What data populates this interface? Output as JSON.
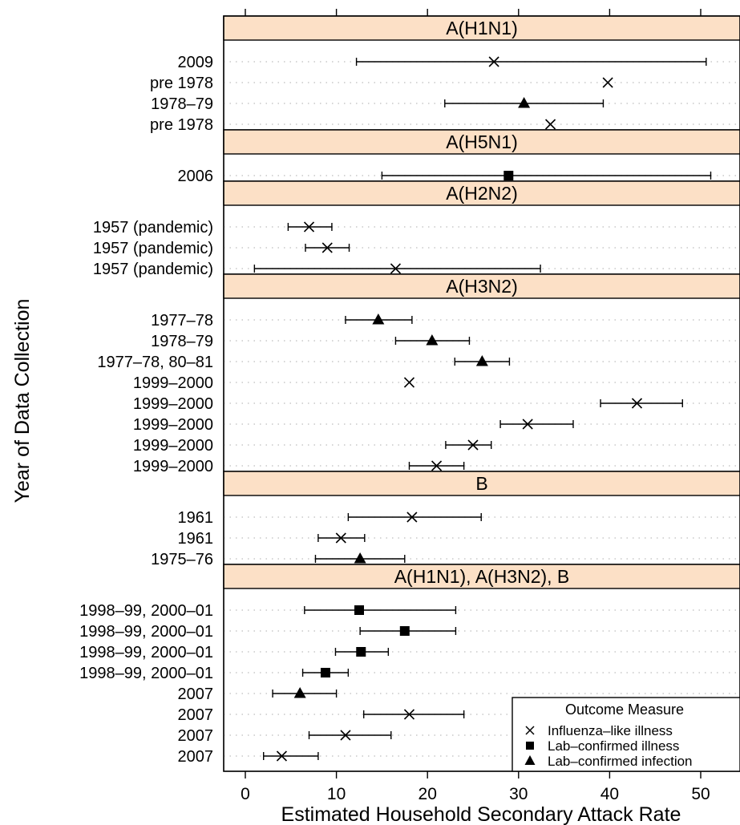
{
  "chart_data": {
    "type": "forest",
    "xlabel": "Estimated Household Secondary Attack Rate",
    "ylabel": "Year of Data Collection",
    "xlim": [
      -2,
      54
    ],
    "xticks": [
      0,
      10,
      20,
      30,
      40,
      50
    ],
    "grid": "dotted horizontal",
    "legend": {
      "title": "Outcome Measure",
      "placement": "bottom-right",
      "entries": [
        {
          "key": "ili",
          "label": "Influenza–like illness",
          "marker": "cross"
        },
        {
          "key": "lci",
          "label": "Lab–confirmed illness",
          "marker": "square"
        },
        {
          "key": "lcf",
          "label": "Lab–confirmed infection",
          "marker": "triangle"
        }
      ]
    },
    "panels": [
      {
        "title": "A(H1N1)",
        "rows": [
          {
            "label": "2009",
            "est": 27.3,
            "lo": 12.2,
            "hi": 50.6,
            "type": "ili"
          },
          {
            "label": "pre 1978",
            "est": 39.8,
            "lo": null,
            "hi": null,
            "type": "ili"
          },
          {
            "label": "1978–79",
            "est": 30.6,
            "lo": 21.9,
            "hi": 39.3,
            "type": "lcf"
          },
          {
            "label": "pre 1978",
            "est": 33.5,
            "lo": null,
            "hi": null,
            "type": "ili"
          }
        ]
      },
      {
        "title": "A(H5N1)",
        "rows": [
          {
            "label": "2006",
            "est": 28.9,
            "lo": 15.0,
            "hi": 51.1,
            "type": "lci"
          }
        ]
      },
      {
        "title": "A(H2N2)",
        "rows": [
          {
            "label": "1957 (pandemic)",
            "est": 7.0,
            "lo": 4.7,
            "hi": 9.5,
            "type": "ili"
          },
          {
            "label": "1957 (pandemic)",
            "est": 9.0,
            "lo": 6.6,
            "hi": 11.4,
            "type": "ili"
          },
          {
            "label": "1957 (pandemic)",
            "est": 16.5,
            "lo": 1.0,
            "hi": 32.4,
            "type": "ili"
          }
        ]
      },
      {
        "title": "A(H3N2)",
        "rows": [
          {
            "label": "1977–78",
            "est": 14.6,
            "lo": 11.0,
            "hi": 18.3,
            "type": "lcf"
          },
          {
            "label": "1978–79",
            "est": 20.5,
            "lo": 16.5,
            "hi": 24.6,
            "type": "lcf"
          },
          {
            "label": "1977–78, 80–81",
            "est": 26.0,
            "lo": 23.0,
            "hi": 29.0,
            "type": "lcf"
          },
          {
            "label": "1999–2000",
            "est": 18.0,
            "lo": null,
            "hi": null,
            "type": "ili"
          },
          {
            "label": "1999–2000",
            "est": 43.0,
            "lo": 39.0,
            "hi": 48.0,
            "type": "ili"
          },
          {
            "label": "1999–2000",
            "est": 31.0,
            "lo": 28.0,
            "hi": 36.0,
            "type": "ili"
          },
          {
            "label": "1999–2000",
            "est": 25.0,
            "lo": 22.0,
            "hi": 27.0,
            "type": "ili"
          },
          {
            "label": "1999–2000",
            "est": 21.0,
            "lo": 18.0,
            "hi": 24.0,
            "type": "ili"
          }
        ]
      },
      {
        "title": "B",
        "rows": [
          {
            "label": "1961",
            "est": 18.3,
            "lo": 11.3,
            "hi": 25.9,
            "type": "ili"
          },
          {
            "label": "1961",
            "est": 10.5,
            "lo": 8.0,
            "hi": 13.1,
            "type": "ili"
          },
          {
            "label": "1975–76",
            "est": 12.6,
            "lo": 7.7,
            "hi": 17.5,
            "type": "lcf"
          }
        ]
      },
      {
        "title": "A(H1N1), A(H3N2), B",
        "rows": [
          {
            "label": "1998–99, 2000–01",
            "est": 12.5,
            "lo": 6.5,
            "hi": 23.1,
            "type": "lci"
          },
          {
            "label": "1998–99, 2000–01",
            "est": 17.5,
            "lo": 12.6,
            "hi": 23.1,
            "type": "lci"
          },
          {
            "label": "1998–99, 2000–01",
            "est": 12.7,
            "lo": 9.9,
            "hi": 15.7,
            "type": "lci"
          },
          {
            "label": "1998–99, 2000–01",
            "est": 8.8,
            "lo": 6.3,
            "hi": 11.3,
            "type": "lci"
          },
          {
            "label": "2007",
            "est": 6.0,
            "lo": 3.0,
            "hi": 10.0,
            "type": "lcf"
          },
          {
            "label": "2007",
            "est": 18.0,
            "lo": 13.0,
            "hi": 24.0,
            "type": "ili"
          },
          {
            "label": "2007",
            "est": 11.0,
            "lo": 7.0,
            "hi": 16.0,
            "type": "ili"
          },
          {
            "label": "2007",
            "est": 4.0,
            "lo": 2.0,
            "hi": 8.0,
            "type": "ili"
          }
        ]
      }
    ]
  },
  "colors": {
    "strip_fill": "#fce0c6",
    "ink": "#000000",
    "grid": "#bdbdbd"
  }
}
